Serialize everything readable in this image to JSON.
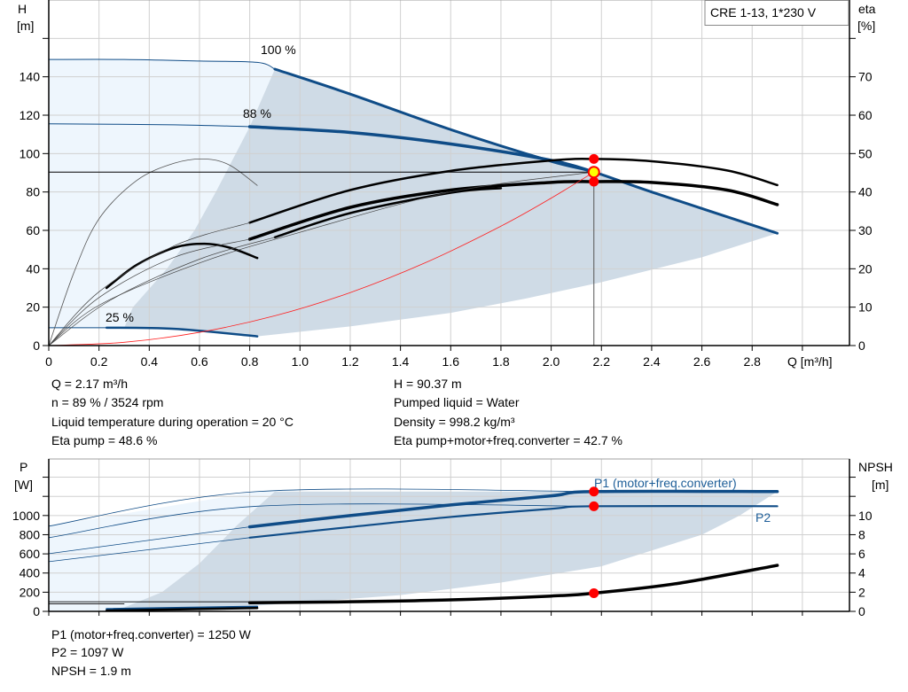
{
  "chart_data": [
    {
      "type": "line",
      "legend": "CRE 1-13, 1*230 V",
      "xlabel": "Q [m³/h]",
      "ylabel_left": [
        "H",
        "[m]"
      ],
      "ylabel_right": [
        "eta",
        "[%]"
      ],
      "xlim": [
        0,
        3.2
      ],
      "ylim_left": [
        0,
        180
      ],
      "ylim_right": [
        0,
        90
      ],
      "x_ticks": [
        "0",
        "0.2",
        "0.4",
        "0.6",
        "0.8",
        "1.0",
        "1.2",
        "1.4",
        "1.6",
        "1.8",
        "2.0",
        "2.2",
        "2.4",
        "2.6",
        "2.8"
      ],
      "y_ticks_left": [
        "0",
        "20",
        "40",
        "60",
        "80",
        "100",
        "120",
        "140"
      ],
      "y_ticks_right": [
        "0",
        "10",
        "20",
        "30",
        "40",
        "50",
        "60",
        "70"
      ],
      "grid": true,
      "curve_labels": [
        "100 %",
        "88 %",
        "25 %"
      ],
      "colors": {
        "curve": "#0f4c87",
        "eta": "#000000",
        "system": "#ff2020",
        "fill_light": "#eef6fd",
        "fill_range": "#cfdbe6",
        "point": "#ff0000",
        "duty_point": "#ffff00"
      },
      "fills": [
        {
          "tone": "light",
          "points": [
            [
              0,
              9.3
            ],
            [
              0,
              149
            ],
            [
              0.3,
              149
            ],
            [
              0.6,
              148.2
            ],
            [
              0.83,
              147.5
            ],
            [
              0.9,
              144
            ],
            [
              0.8,
              114
            ],
            [
              0.665,
              80
            ],
            [
              0.58,
              60
            ],
            [
              0.47,
              40
            ],
            [
              0.335,
              20
            ],
            [
              0.3,
              9.1
            ]
          ]
        },
        {
          "tone": "range",
          "points": [
            [
              0.9,
              144
            ],
            [
              1.2,
              131
            ],
            [
              1.6,
              112.5
            ],
            [
              2.0,
              96
            ],
            [
              2.17,
              90.4
            ],
            [
              2.4,
              80
            ],
            [
              2.9,
              58.5
            ],
            [
              2.6,
              46
            ],
            [
              2.2,
              33
            ],
            [
              1.9,
              24.5
            ],
            [
              1.6,
              17
            ],
            [
              1.2,
              10
            ],
            [
              0.83,
              4.8
            ],
            [
              0.5,
              8.7
            ],
            [
              0.3,
              9.1
            ],
            [
              0.335,
              20
            ],
            [
              0.47,
              40
            ],
            [
              0.58,
              60
            ],
            [
              0.665,
              80
            ],
            [
              0.8,
              114
            ]
          ]
        }
      ],
      "series": [
        {
          "name": "100 %",
          "axis": "H",
          "color": "#0f4c87",
          "width": 1,
          "points": [
            [
              0,
              149
            ],
            [
              0.3,
              149
            ],
            [
              0.6,
              148.2
            ],
            [
              0.83,
              147.5
            ],
            [
              0.9,
              144
            ]
          ]
        },
        {
          "name": "100 %",
          "axis": "H",
          "color": "#0f4c87",
          "width": 3,
          "points": [
            [
              0.9,
              144
            ],
            [
              1.2,
              131
            ],
            [
              1.6,
              112.5
            ],
            [
              2.0,
              96
            ],
            [
              2.17,
              90.4
            ],
            [
              2.4,
              80
            ],
            [
              2.9,
              58.5
            ]
          ]
        },
        {
          "name": "88 %",
          "axis": "H",
          "color": "#0f4c87",
          "width": 1,
          "points": [
            [
              0,
              115.5
            ],
            [
              0.5,
              115
            ],
            [
              0.8,
              114
            ]
          ]
        },
        {
          "name": "88 %",
          "axis": "H",
          "color": "#0f4c87",
          "width": 3.5,
          "points": [
            [
              0.8,
              114
            ],
            [
              1.2,
              111
            ],
            [
              1.6,
              105
            ],
            [
              2.0,
              96.5
            ],
            [
              2.17,
              90.4
            ]
          ]
        },
        {
          "name": "25 %",
          "axis": "H",
          "color": "#0f4c87",
          "width": 1,
          "points": [
            [
              0,
              9.3
            ],
            [
              0.23,
              9.3
            ]
          ]
        },
        {
          "name": "25 %",
          "axis": "H",
          "color": "#0f4c87",
          "width": 2.5,
          "points": [
            [
              0.23,
              9.3
            ],
            [
              0.5,
              8.7
            ],
            [
              0.83,
              4.8
            ]
          ]
        },
        {
          "axis": "eta",
          "color": "#000000",
          "width": 2.5,
          "points": [
            [
              0.8,
              32
            ],
            [
              1.2,
              40.5
            ],
            [
              1.6,
              45.5
            ],
            [
              2.0,
              48.2
            ],
            [
              2.17,
              48.6
            ],
            [
              2.4,
              48
            ],
            [
              2.7,
              45.6
            ],
            [
              2.9,
              41.8
            ]
          ]
        },
        {
          "axis": "eta",
          "color": "#000000",
          "width": 3.5,
          "points": [
            [
              0.8,
              27.7
            ],
            [
              1.2,
              36
            ],
            [
              1.6,
              40.5
            ],
            [
              2.0,
              42.5
            ],
            [
              2.17,
              42.7
            ],
            [
              2.4,
              42.5
            ],
            [
              2.7,
              40.5
            ],
            [
              2.9,
              36.7
            ]
          ]
        },
        {
          "axis": "eta",
          "color": "#000000",
          "width": 2.5,
          "points": [
            [
              0.9,
              28.2
            ],
            [
              1.2,
              34.5
            ],
            [
              1.6,
              39.8
            ],
            [
              1.8,
              41
            ]
          ]
        },
        {
          "axis": "eta",
          "color": "#555555",
          "width": 0.8,
          "points": [
            [
              0,
              0
            ],
            [
              0.1,
              19
            ],
            [
              0.2,
              33
            ],
            [
              0.35,
              43
            ],
            [
              0.5,
              47.5
            ],
            [
              0.62,
              48.6
            ],
            [
              0.72,
              47
            ],
            [
              0.83,
              41.7
            ]
          ]
        },
        {
          "axis": "eta",
          "color": "#000000",
          "width": 2.5,
          "points": [
            [
              0.23,
              15
            ],
            [
              0.35,
              21
            ],
            [
              0.5,
              25.5
            ],
            [
              0.62,
              26.5
            ],
            [
              0.72,
              25.5
            ],
            [
              0.83,
              22.8
            ]
          ]
        },
        {
          "axis": "eta",
          "color": "#444444",
          "width": 0.7,
          "points": [
            [
              0,
              0
            ],
            [
              0.2,
              14
            ],
            [
              0.5,
              26
            ],
            [
              0.8,
              32
            ]
          ]
        },
        {
          "axis": "eta",
          "color": "#444444",
          "width": 0.7,
          "points": [
            [
              0,
              0
            ],
            [
              0.2,
              12.5
            ],
            [
              0.5,
              23
            ],
            [
              0.8,
              27.7
            ]
          ]
        },
        {
          "axis": "eta",
          "color": "#444444",
          "width": 0.7,
          "points": [
            [
              0,
              0
            ],
            [
              0.25,
              12
            ],
            [
              0.6,
              22.5
            ],
            [
              0.9,
              28.2
            ]
          ]
        },
        {
          "axis": "eta",
          "color": "#444444",
          "width": 0.7,
          "points": [
            [
              0,
              0
            ],
            [
              0.2,
              10.5
            ],
            [
              0.6,
              21.5
            ],
            [
              1.0,
              29.5
            ],
            [
              1.6,
              40
            ],
            [
              2.17,
              45.2
            ]
          ]
        },
        {
          "axis": "H",
          "color": "#ff2020",
          "width": 0.8,
          "points": [
            [
              0,
              0
            ],
            [
              0.3,
              1.7
            ],
            [
              0.6,
              6.9
            ],
            [
              0.9,
              15.5
            ],
            [
              1.2,
              27.6
            ],
            [
              1.5,
              43.2
            ],
            [
              1.8,
              62.2
            ],
            [
              2.0,
              76.8
            ],
            [
              2.17,
              90.37
            ]
          ]
        }
      ],
      "duty_point": {
        "Q": 2.17,
        "H": 90.37
      },
      "markers": [
        {
          "axis": "eta",
          "Q": 2.17,
          "value": 48.6
        },
        {
          "axis": "eta",
          "Q": 2.17,
          "value": 42.7
        }
      ]
    },
    {
      "type": "line",
      "ylabel_left": [
        "P",
        "[W]"
      ],
      "ylabel_right": [
        "NPSH",
        "[m]"
      ],
      "xlim": [
        0,
        3.2
      ],
      "ylim_left": [
        0,
        1590
      ],
      "ylim_right": [
        0,
        15.9
      ],
      "y_ticks_left": [
        "0",
        "200",
        "400",
        "600",
        "800",
        "1000"
      ],
      "y_ticks_right": [
        "0",
        "2",
        "4",
        "6",
        "8",
        "10"
      ],
      "grid": true,
      "series_labels": [
        "P1 (motor+freq.converter)",
        "P2"
      ],
      "fills": [
        {
          "tone": "light",
          "points": [
            [
              0,
              0
            ],
            [
              0,
              889
            ],
            [
              0.83,
              1250
            ],
            [
              0.9,
              1250
            ],
            [
              0.75,
              900
            ],
            [
              0.6,
              500
            ],
            [
              0.45,
              200
            ],
            [
              0.3,
              40
            ],
            [
              0.2,
              0
            ]
          ]
        },
        {
          "tone": "range",
          "points": [
            [
              0.9,
              1250
            ],
            [
              2.9,
              1250
            ],
            [
              2.75,
              1000
            ],
            [
              2.6,
              800
            ],
            [
              2.2,
              470
            ],
            [
              1.8,
              300
            ],
            [
              1.4,
              170
            ],
            [
              0.83,
              60
            ],
            [
              0.3,
              15
            ],
            [
              0.2,
              0
            ],
            [
              0.3,
              40
            ],
            [
              0.45,
              200
            ],
            [
              0.6,
              500
            ],
            [
              0.75,
              900
            ]
          ]
        }
      ],
      "series": [
        {
          "name": "P1 (motor+freq.converter)",
          "axis": "P",
          "color": "#0f4c87",
          "width": 0.8,
          "points": [
            [
              0,
              889
            ],
            [
              0.83,
              1250
            ],
            [
              2.17,
              1250
            ]
          ]
        },
        {
          "name": "P2",
          "axis": "P",
          "color": "#0f4c87",
          "width": 0.8,
          "points": [
            [
              0,
              769
            ],
            [
              0.83,
              1097
            ],
            [
              2.17,
              1097
            ]
          ]
        },
        {
          "name": "P1 (motor+freq.converter)",
          "axis": "P",
          "color": "#0f4c87",
          "width": 0.8,
          "points": [
            [
              0,
              602
            ],
            [
              0.8,
              882
            ]
          ]
        },
        {
          "name": "P2",
          "axis": "P",
          "color": "#0f4c87",
          "width": 0.8,
          "points": [
            [
              0,
              519
            ],
            [
              0.8,
              769
            ]
          ]
        },
        {
          "name": "P1 (motor+freq.converter)",
          "axis": "P",
          "color": "#0f4c87",
          "width": 3.5,
          "points": [
            [
              0.8,
              882
            ],
            [
              1.2,
              1000
            ],
            [
              1.6,
              1110
            ],
            [
              2.0,
              1205
            ],
            [
              2.17,
              1250
            ],
            [
              2.9,
              1250
            ]
          ]
        },
        {
          "name": "P2",
          "axis": "P",
          "color": "#0f4c87",
          "width": 2.2,
          "points": [
            [
              0.8,
              769
            ],
            [
              1.2,
              880
            ],
            [
              1.6,
              985
            ],
            [
              2.0,
              1070
            ],
            [
              2.17,
              1097
            ],
            [
              2.9,
              1097
            ]
          ]
        },
        {
          "axis": "P",
          "color": "#000000",
          "width": 0.8,
          "points": [
            [
              0,
              100
            ],
            [
              0.85,
              100
            ]
          ]
        },
        {
          "axis": "P",
          "color": "#000000",
          "width": 0.8,
          "points": [
            [
              0,
              78
            ],
            [
              0.3,
              78
            ]
          ]
        },
        {
          "axis": "P",
          "color": "#0f4c87",
          "width": 2,
          "points": [
            [
              0.23,
              25
            ],
            [
              0.83,
              50
            ]
          ]
        },
        {
          "axis": "P",
          "color": "#000000",
          "width": 2.5,
          "points": [
            [
              0.23,
              8
            ],
            [
              0.83,
              35
            ]
          ]
        },
        {
          "axis": "NPSH",
          "color": "#000000",
          "width": 3.5,
          "points": [
            [
              0.8,
              0.9
            ],
            [
              1.2,
              1.0
            ],
            [
              1.6,
              1.2
            ],
            [
              2.0,
              1.6
            ],
            [
              2.17,
              1.9
            ],
            [
              2.5,
              2.9
            ],
            [
              2.9,
              4.8
            ]
          ]
        }
      ],
      "markers": [
        {
          "axis": "P",
          "Q": 2.17,
          "value": 1250
        },
        {
          "axis": "P",
          "Q": 2.17,
          "value": 1097
        },
        {
          "axis": "NPSH",
          "Q": 2.17,
          "value": 1.9
        }
      ]
    }
  ],
  "info": {
    "left": [
      "Q = 2.17 m³/h",
      "n = 89 % / 3524 rpm",
      "Liquid temperature during operation = 20 °C",
      "Eta pump = 48.6 %"
    ],
    "right": [
      "H = 90.37 m",
      "Pumped liquid = Water",
      "Density = 998.2 kg/m³",
      "Eta pump+motor+freq.converter = 42.7 %"
    ],
    "bottom": [
      "P1 (motor+freq.converter) = 1250 W",
      "P2 = 1097 W",
      "NPSH = 1.9 m"
    ]
  }
}
